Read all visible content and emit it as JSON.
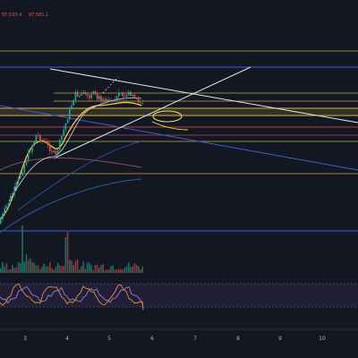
{
  "header": {
    "price_left": "97,533.4",
    "price_right": "97,581.1"
  },
  "chart_data": {
    "type": "line",
    "panes": [
      "price",
      "volume",
      "oscillator"
    ],
    "x_ticks": [
      "3",
      "4",
      "5",
      "6",
      "7",
      "8",
      "9",
      "10"
    ],
    "grid": false,
    "colors": {
      "background": "#131722",
      "up": "#26a69a",
      "down": "#ef5350",
      "resistance": "#c8a84a",
      "support_blue": "#3d5fc9",
      "trendline": "#ffffff",
      "ma_fast": "#f5c542",
      "ma_slow": "#8b4a6b",
      "ma_blue": "#2f56a8",
      "osc_purple": "#9c7bd4",
      "osc_orange": "#e8913a"
    },
    "horizontal_levels": [
      {
        "name": "blue-top",
        "color": "#3d5fc9"
      },
      {
        "name": "yellow-top",
        "color": "#c8a84a"
      },
      {
        "name": "yellow-1",
        "color": "#c8a84a"
      },
      {
        "name": "yellow-2",
        "color": "#c8a84a"
      },
      {
        "name": "yellow-band",
        "color": "#c8a84a"
      },
      {
        "name": "red-1",
        "color": "#ef5350"
      },
      {
        "name": "red-2",
        "color": "#ef5350"
      },
      {
        "name": "yellow-3",
        "color": "#c8a84a"
      },
      {
        "name": "yellow-4",
        "color": "#c8a84a"
      },
      {
        "name": "blue-bottom",
        "color": "#3d5fc9"
      }
    ]
  }
}
